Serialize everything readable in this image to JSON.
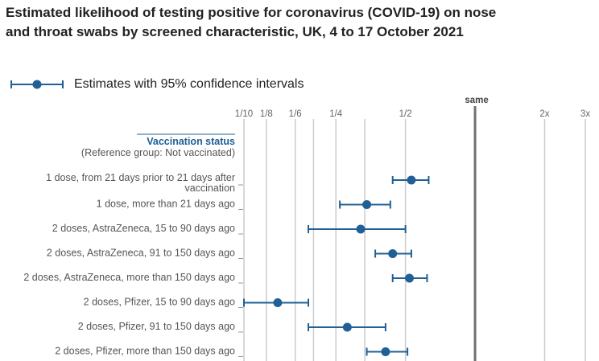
{
  "title": "Estimated likelihood of testing positive for coronavirus (COVID-19) on nose and throat swabs by screened characteristic, UK, 4 to 17 October 2021",
  "legend": {
    "label": "Estimates with 95% confidence intervals"
  },
  "colors": {
    "series": "#206095",
    "grid": "#cccccc",
    "reference": "#707070"
  },
  "chart_data": {
    "type": "scatter",
    "subtype": "forest-plot",
    "x_scale": "log",
    "x_range": [
      0.1,
      3.0
    ],
    "reference_line": {
      "value": 1,
      "label": "same"
    },
    "ticks": [
      {
        "value": 0.1,
        "label": "1/10"
      },
      {
        "value": 0.125,
        "label": "1/8"
      },
      {
        "value": 0.16667,
        "label": "1/6"
      },
      {
        "value": 0.25,
        "label": "1/4"
      },
      {
        "value": 0.5,
        "label": "1/2"
      },
      {
        "value": 2,
        "label": "2x"
      },
      {
        "value": 3,
        "label": "3x"
      }
    ],
    "extra_gridlines": [
      0.2,
      0.33333
    ],
    "group": {
      "title": "Vaccination status",
      "subtitle": "(Reference group: Not vaccinated)"
    },
    "rows": [
      {
        "label_lines": [
          "1 dose, from 21 days prior to 21 days after",
          "vaccination"
        ],
        "estimate": 0.53,
        "lower": 0.44,
        "upper": 0.63
      },
      {
        "label_lines": [
          "1 dose, more than 21 days ago"
        ],
        "estimate": 0.34,
        "lower": 0.26,
        "upper": 0.43
      },
      {
        "label_lines": [
          "2 doses, AstraZeneca, 15 to 90 days ago"
        ],
        "estimate": 0.32,
        "lower": 0.19,
        "upper": 0.5
      },
      {
        "label_lines": [
          "2 doses, AstraZeneca, 91 to 150 days ago"
        ],
        "estimate": 0.44,
        "lower": 0.37,
        "upper": 0.53
      },
      {
        "label_lines": [
          "2 doses, AstraZeneca, more than 150 days ago"
        ],
        "estimate": 0.52,
        "lower": 0.44,
        "upper": 0.62
      },
      {
        "label_lines": [
          "2 doses, Pfizer, 15 to 90 days ago"
        ],
        "estimate": 0.14,
        "lower": 0.1,
        "upper": 0.19
      },
      {
        "label_lines": [
          "2 doses, Pfizer, 91 to 150 days ago"
        ],
        "estimate": 0.28,
        "lower": 0.19,
        "upper": 0.41
      },
      {
        "label_lines": [
          "2 doses, Pfizer, more than 150 days ago"
        ],
        "estimate": 0.41,
        "lower": 0.34,
        "upper": 0.51
      }
    ]
  }
}
